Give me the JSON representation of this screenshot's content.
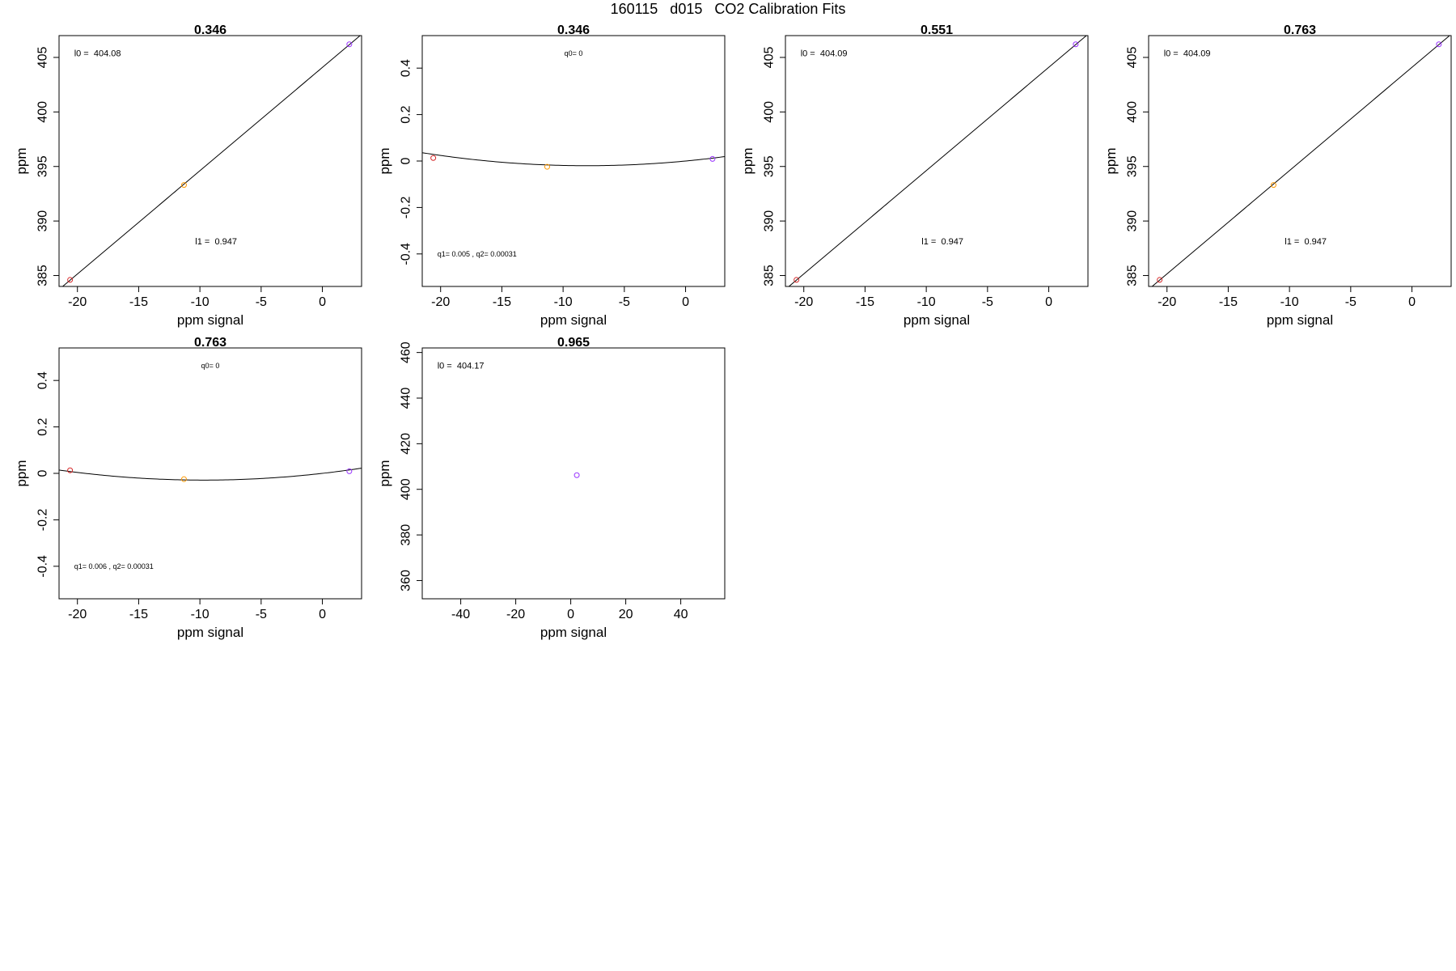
{
  "page": {
    "suptitle": "160115   d015   CO2 Calibration Fits"
  },
  "chart_data": [
    {
      "type": "scatter",
      "title": "0.346",
      "xlabel": "ppm signal",
      "ylabel": "ppm",
      "xlim": [
        -21.5,
        3.2
      ],
      "ylim": [
        384.0,
        407.0
      ],
      "xticks": [
        -20,
        -15,
        -10,
        -5,
        0
      ],
      "yticks": [
        385,
        390,
        395,
        400,
        405
      ],
      "points": [
        {
          "x": -20.6,
          "y": 384.6,
          "color": "#d62728"
        },
        {
          "x": -11.3,
          "y": 393.3,
          "color": "#ff9900"
        },
        {
          "x": 2.2,
          "y": 406.2,
          "color": "#9933ff"
        }
      ],
      "fit": {
        "kind": "linear",
        "intercept": 404.08,
        "slope": 0.947
      },
      "annotations": [
        {
          "text": "l0 =  404.08",
          "ax": 0.05,
          "ay": 0.07,
          "size": 11
        },
        {
          "text": "l1 =  0.947",
          "ax": 0.45,
          "ay": 0.82,
          "size": 11
        }
      ]
    },
    {
      "type": "scatter",
      "title": "0.346",
      "xlabel": "ppm signal",
      "ylabel": "ppm",
      "xlim": [
        -21.5,
        3.2
      ],
      "ylim": [
        -0.54,
        0.54
      ],
      "xticks": [
        -20,
        -15,
        -10,
        -5,
        0
      ],
      "yticks": [
        -0.4,
        -0.2,
        0.0,
        0.2,
        0.4
      ],
      "points": [
        {
          "x": -20.6,
          "y": 0.013,
          "color": "#d62728"
        },
        {
          "x": -11.3,
          "y": -0.025,
          "color": "#ff9900"
        },
        {
          "x": 2.2,
          "y": 0.009,
          "color": "#9933ff"
        }
      ],
      "fit": {
        "kind": "quadratic",
        "q0": 0,
        "q1": 0.005,
        "q2": 0.00031
      },
      "annotations": [
        {
          "text": "q0= 0",
          "ax": 0.5,
          "ay": 0.07,
          "size": 9,
          "anchor": "middle"
        },
        {
          "text": "q1= 0.005 , q2= 0.00031",
          "ax": 0.05,
          "ay": 0.87,
          "size": 9
        }
      ]
    },
    {
      "type": "scatter",
      "title": "0.551",
      "xlabel": "ppm signal",
      "ylabel": "ppm",
      "xlim": [
        -21.5,
        3.2
      ],
      "ylim": [
        384.0,
        407.0
      ],
      "xticks": [
        -20,
        -15,
        -10,
        -5,
        0
      ],
      "yticks": [
        385,
        390,
        395,
        400,
        405
      ],
      "points": [
        {
          "x": -20.6,
          "y": 384.6,
          "color": "#d62728"
        },
        {
          "x": 2.2,
          "y": 406.2,
          "color": "#9933ff"
        }
      ],
      "fit": {
        "kind": "linear",
        "intercept": 404.09,
        "slope": 0.947
      },
      "annotations": [
        {
          "text": "l0 =  404.09",
          "ax": 0.05,
          "ay": 0.07,
          "size": 11
        },
        {
          "text": "l1 =  0.947",
          "ax": 0.45,
          "ay": 0.82,
          "size": 11
        }
      ]
    },
    {
      "type": "scatter",
      "title": "0.763",
      "xlabel": "ppm signal",
      "ylabel": "ppm",
      "xlim": [
        -21.5,
        3.2
      ],
      "ylim": [
        384.0,
        407.0
      ],
      "xticks": [
        -20,
        -15,
        -10,
        -5,
        0
      ],
      "yticks": [
        385,
        390,
        395,
        400,
        405
      ],
      "points": [
        {
          "x": -20.6,
          "y": 384.6,
          "color": "#d62728"
        },
        {
          "x": -11.3,
          "y": 393.3,
          "color": "#ff9900"
        },
        {
          "x": 2.2,
          "y": 406.2,
          "color": "#9933ff"
        }
      ],
      "fit": {
        "kind": "linear",
        "intercept": 404.09,
        "slope": 0.947
      },
      "annotations": [
        {
          "text": "l0 =  404.09",
          "ax": 0.05,
          "ay": 0.07,
          "size": 11
        },
        {
          "text": "l1 =  0.947",
          "ax": 0.45,
          "ay": 0.82,
          "size": 11
        }
      ]
    },
    {
      "type": "scatter",
      "title": "0.763",
      "xlabel": "ppm signal",
      "ylabel": "ppm",
      "xlim": [
        -21.5,
        3.2
      ],
      "ylim": [
        -0.54,
        0.54
      ],
      "xticks": [
        -20,
        -15,
        -10,
        -5,
        0
      ],
      "yticks": [
        -0.4,
        -0.2,
        0.0,
        0.2,
        0.4
      ],
      "points": [
        {
          "x": -20.6,
          "y": 0.013,
          "color": "#d62728"
        },
        {
          "x": -11.3,
          "y": -0.025,
          "color": "#ff9900"
        },
        {
          "x": 2.2,
          "y": 0.009,
          "color": "#9933ff"
        }
      ],
      "fit": {
        "kind": "quadratic",
        "q0": 0,
        "q1": 0.006,
        "q2": 0.00031
      },
      "annotations": [
        {
          "text": "q0= 0",
          "ax": 0.5,
          "ay": 0.07,
          "size": 9,
          "anchor": "middle"
        },
        {
          "text": "q1= 0.006 , q2= 0.00031",
          "ax": 0.05,
          "ay": 0.87,
          "size": 9
        }
      ]
    },
    {
      "type": "scatter",
      "title": "0.965",
      "xlabel": "ppm signal",
      "ylabel": "ppm",
      "xlim": [
        -54,
        56
      ],
      "ylim": [
        352,
        462
      ],
      "xticks": [
        -40,
        -20,
        0,
        20,
        40
      ],
      "yticks": [
        360,
        380,
        400,
        420,
        440,
        460
      ],
      "points": [
        {
          "x": 2.2,
          "y": 406.2,
          "color": "#9933ff"
        }
      ],
      "fit": null,
      "annotations": [
        {
          "text": "l0 =  404.17",
          "ax": 0.05,
          "ay": 0.07,
          "size": 11
        }
      ]
    }
  ]
}
